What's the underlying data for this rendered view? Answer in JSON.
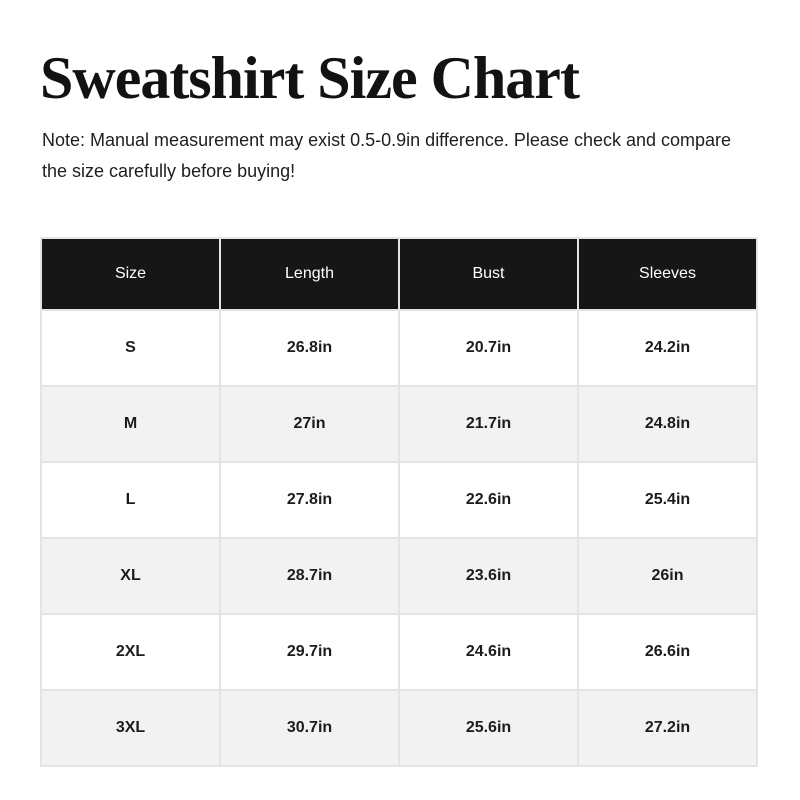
{
  "page": {
    "title": "Sweatshirt Size Chart",
    "note": "Note: Manual measurement may exist 0.5-0.9in difference. Please check and compare the size carefully before buying!"
  },
  "size_chart": {
    "columns": [
      "Size",
      "Length",
      "Bust",
      "Sleeves"
    ],
    "rows": [
      {
        "size": "S",
        "length": "26.8in",
        "bust": "20.7in",
        "sleeves": "24.2in"
      },
      {
        "size": "M",
        "length": "27in",
        "bust": "21.7in",
        "sleeves": "24.8in"
      },
      {
        "size": "L",
        "length": "27.8in",
        "bust": "22.6in",
        "sleeves": "25.4in"
      },
      {
        "size": "XL",
        "length": "28.7in",
        "bust": "23.6in",
        "sleeves": "26in"
      },
      {
        "size": "2XL",
        "length": "29.7in",
        "bust": "24.6in",
        "sleeves": "26.6in"
      },
      {
        "size": "3XL",
        "length": "30.7in",
        "bust": "25.6in",
        "sleeves": "27.2in"
      }
    ]
  },
  "chart_data": {
    "type": "table",
    "title": "Sweatshirt Size Chart",
    "categories": [
      "S",
      "M",
      "L",
      "XL",
      "2XL",
      "3XL"
    ],
    "series": [
      {
        "name": "Length (in)",
        "values": [
          26.8,
          27,
          27.8,
          28.7,
          29.7,
          30.7
        ]
      },
      {
        "name": "Bust (in)",
        "values": [
          20.7,
          21.7,
          22.6,
          23.6,
          24.6,
          25.6
        ]
      },
      {
        "name": "Sleeves (in)",
        "values": [
          24.2,
          24.8,
          25.4,
          26,
          26.6,
          27.2
        ]
      }
    ]
  },
  "colors": {
    "header_bg": "#161616",
    "header_text": "#ffffff",
    "row_bg": "#ffffff",
    "row_alt_bg": "#f2f2f2",
    "border": "#e4e4e4",
    "title_text": "#121212",
    "note_text": "#1e1e1e",
    "body_text": "#1c1c1c"
  }
}
